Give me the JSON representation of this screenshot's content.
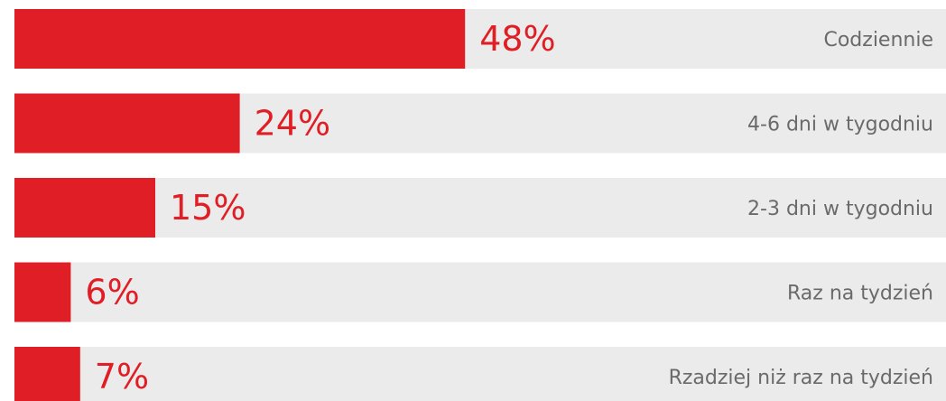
{
  "chart_data": {
    "type": "bar",
    "orientation": "horizontal",
    "categories": [
      "Codziennie",
      "4-6 dni w tygodniu",
      "2-3 dni w tygodniu",
      "Raz na tydzień",
      "Rzadziej niż raz na tydzień"
    ],
    "values": [
      48,
      24,
      15,
      6,
      7
    ],
    "value_labels": [
      "48%",
      "24%",
      "15%",
      "6%",
      "7%"
    ],
    "unit": "%",
    "xlim": [
      0,
      100
    ],
    "grid": false,
    "legend": "none",
    "colors": {
      "bar": "#e01e25",
      "track": "#ebebeb",
      "value_text": "#e01e25",
      "category_text": "#6a6a6a"
    }
  }
}
